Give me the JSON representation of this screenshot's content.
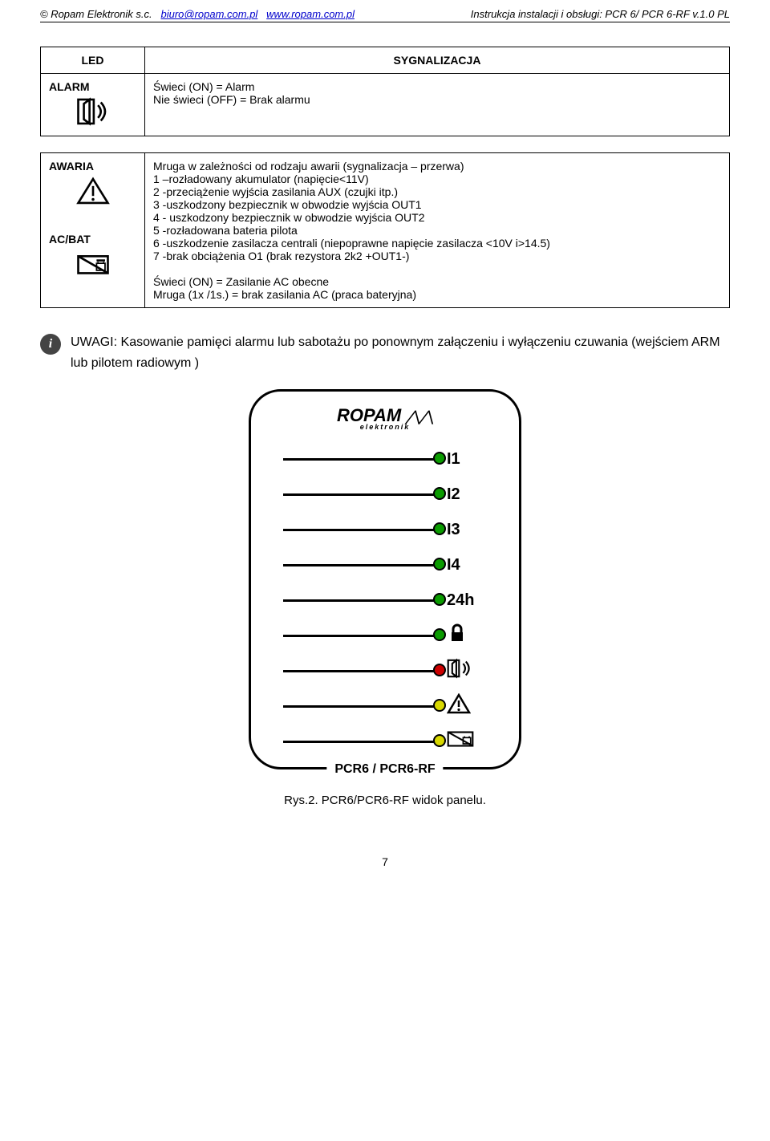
{
  "header": {
    "company": "© Ropam Elektronik s.c.",
    "email": "biuro@ropam.com.pl",
    "website": "www.ropam.com.pl",
    "doc_title": "Instrukcja instalacji i obsługi: PCR 6/ PCR 6-RF  v.1.0 PL"
  },
  "table1": {
    "head_left": "LED",
    "head_right": "SYGNALIZACJA",
    "row_label": "ALARM",
    "row_text_l1": "Świeci (ON) = Alarm",
    "row_text_l2": "Nie świeci (OFF) = Brak alarmu"
  },
  "table2": {
    "r1_label": "AWARIA",
    "r1_l1": "Mruga w zależności od rodzaju awarii (sygnalizacja – przerwa)",
    "r1_l2": "1 –rozładowany akumulator (napięcie<11V)",
    "r1_l3": "2 -przeciążenie wyjścia zasilania AUX (czujki itp.)",
    "r1_l4": "3 -uszkodzony bezpiecznik w obwodzie wyjścia OUT1",
    "r1_l5": "4 - uszkodzony bezpiecznik w obwodzie wyjścia OUT2",
    "r1_l6": "5 -rozładowana bateria pilota",
    "r1_l7": "6 -uszkodzenie zasilacza  centrali (niepoprawne napięcie zasilacza <10V i>14.5)",
    "r1_l8": "7 -brak obciążenia O1 (brak rezystora 2k2 +OUT1-)",
    "r2_label": "AC/BAT",
    "r2_l1": "Świeci (ON) = Zasilanie AC obecne",
    "r2_l2": "Mruga (1x /1s.) =  brak zasilania AC  (praca bateryjna)"
  },
  "note": {
    "text": "UWAGI:  Kasowanie pamięci alarmu lub sabotażu po ponownym załączeniu i wyłączeniu czuwania (wejściem ARM lub pilotem radiowym )"
  },
  "panel": {
    "logo_main": "ROPAM",
    "logo_sub": "elektronik",
    "model": "PCR6 / PCR6-RF",
    "rows": [
      {
        "label": "I1",
        "led_color": "#0a9b00"
      },
      {
        "label": "I2",
        "led_color": "#0a9b00"
      },
      {
        "label": "I3",
        "led_color": "#0a9b00"
      },
      {
        "label": "I4",
        "led_color": "#0a9b00"
      },
      {
        "label": "24h",
        "led_color": "#0a9b00"
      },
      {
        "label": "lock",
        "led_color": "#0a9b00"
      },
      {
        "label": "siren",
        "led_color": "#cc0000"
      },
      {
        "label": "warn",
        "led_color": "#d8d800"
      },
      {
        "label": "acbat",
        "led_color": "#d8d800"
      }
    ]
  },
  "figure_caption": "Rys.2. PCR6/PCR6-RF widok panelu.",
  "page_number": "7",
  "colors": {
    "link": "#0000cc",
    "green": "#0a9b00",
    "red": "#cc0000",
    "yellow": "#d8d800",
    "border": "#000000",
    "bg": "#ffffff"
  }
}
